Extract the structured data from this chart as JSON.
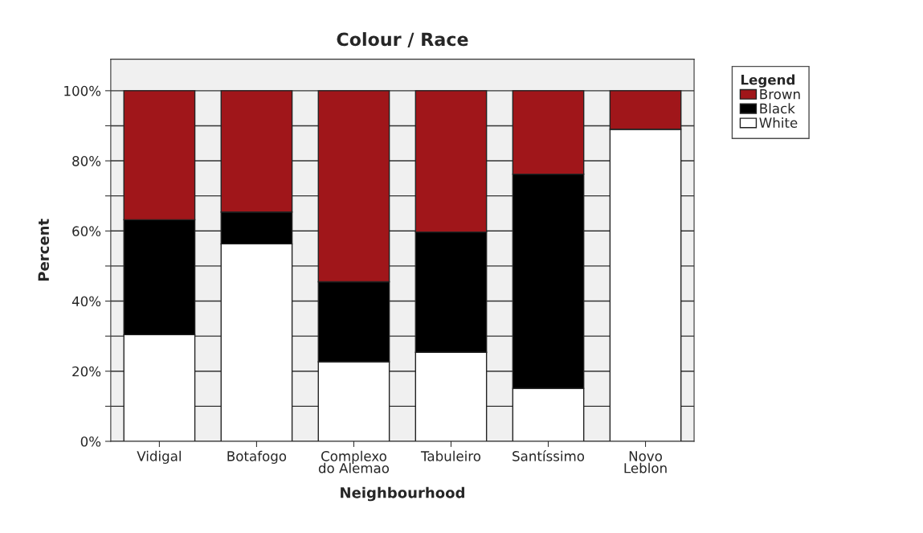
{
  "chart_data": {
    "type": "bar",
    "title": "Colour / Race",
    "xlabel": "Neighbourhood",
    "ylabel": "Percent",
    "legend_title": "Legend",
    "categories": [
      "Vidigal",
      "Botafogo",
      "Complexo\ndo Alemao",
      "Tabuleiro",
      "Santíssimo",
      "Novo\nLeblon"
    ],
    "stacked": true,
    "series": [
      {
        "name": "White",
        "color": "#ffffff",
        "values": [
          30.4,
          56.3,
          22.7,
          25.4,
          15.1,
          89.0
        ]
      },
      {
        "name": "Black",
        "color": "#000000",
        "values": [
          32.8,
          9.1,
          22.8,
          34.3,
          61.1,
          0
        ]
      },
      {
        "name": "Brown",
        "color": "#a0161a",
        "values": [
          36.8,
          34.6,
          54.5,
          40.3,
          23.8,
          11.0
        ]
      }
    ],
    "ylim": [
      0,
      109
    ],
    "yticks": [
      {
        "value": 0,
        "label": "0%"
      },
      {
        "value": 10,
        "label": null
      },
      {
        "value": 20,
        "label": "20%"
      },
      {
        "value": 30,
        "label": null
      },
      {
        "value": 40,
        "label": "40%"
      },
      {
        "value": 50,
        "label": null
      },
      {
        "value": 60,
        "label": "60%"
      },
      {
        "value": 70,
        "label": null
      },
      {
        "value": 80,
        "label": "80%"
      },
      {
        "value": 90,
        "label": null
      },
      {
        "value": 100,
        "label": "100%"
      }
    ],
    "grid": "y",
    "legend": "top right"
  }
}
